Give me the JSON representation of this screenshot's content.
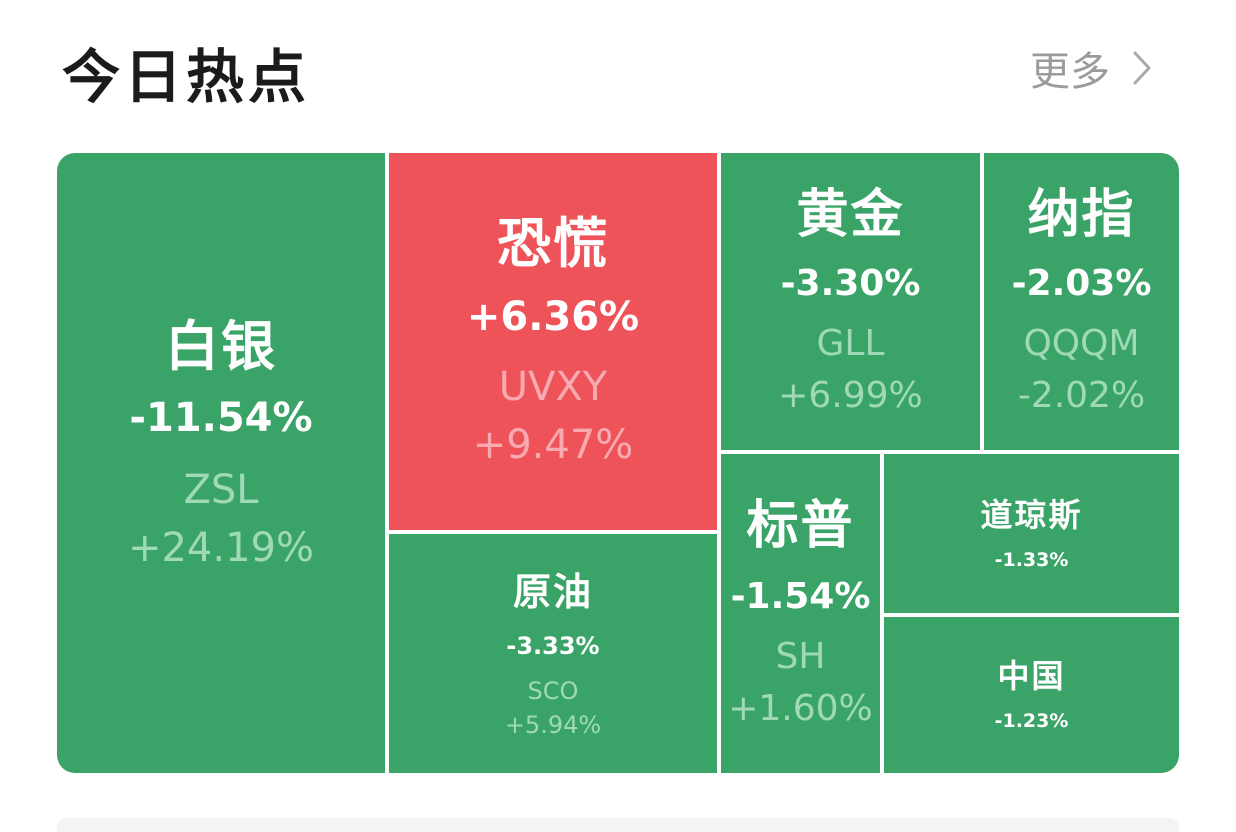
{
  "header": {
    "title": "今日热点",
    "more_label": "更多"
  },
  "colors": {
    "down": "#3aa468",
    "up": "#ee5359",
    "title": "#1b1b1b",
    "more": "#9b9b9b"
  },
  "tiles": {
    "silver": {
      "name": "白银",
      "change": "-11.54%",
      "etf": "ZSL",
      "etf_change": "+24.19%"
    },
    "panic": {
      "name": "恐慌",
      "change": "+6.36%",
      "etf": "UVXY",
      "etf_change": "+9.47%"
    },
    "gold": {
      "name": "黄金",
      "change": "-3.30%",
      "etf": "GLL",
      "etf_change": "+6.99%"
    },
    "nasdaq": {
      "name": "纳指",
      "change": "-2.03%",
      "etf": "QQQM",
      "etf_change": "-2.02%"
    },
    "crude": {
      "name": "原油",
      "change": "-3.33%",
      "etf": "SCO",
      "etf_change": "+5.94%"
    },
    "sp500": {
      "name": "标普",
      "change": "-1.54%",
      "etf": "SH",
      "etf_change": "+1.60%"
    },
    "dow": {
      "name": "道琼斯",
      "change": "-1.33%"
    },
    "china": {
      "name": "中国",
      "change": "-1.23%"
    }
  }
}
